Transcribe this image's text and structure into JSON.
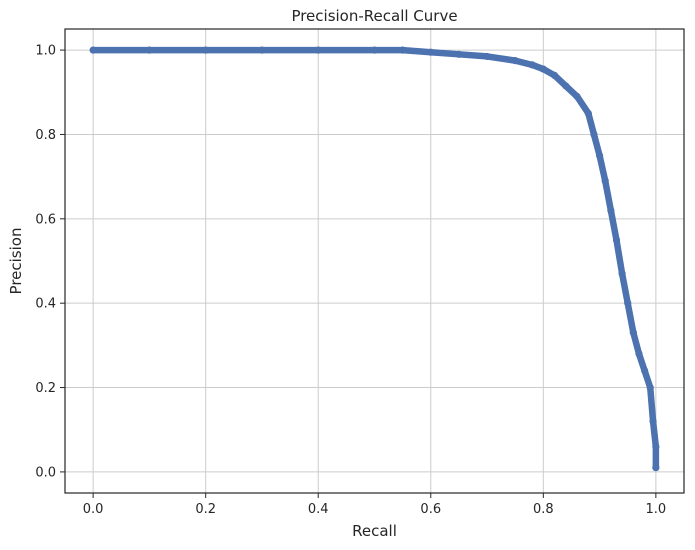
{
  "chart_data": {
    "type": "line",
    "title": "Precision-Recall Curve",
    "xlabel": "Recall",
    "ylabel": "Precision",
    "xlim": [
      -0.05,
      1.05
    ],
    "ylim": [
      -0.05,
      1.05
    ],
    "xticks": [
      0.0,
      0.2,
      0.4,
      0.6,
      0.8,
      1.0
    ],
    "xtick_labels": [
      "0.0",
      "0.2",
      "0.4",
      "0.6",
      "0.8",
      "1.0"
    ],
    "yticks": [
      0.0,
      0.2,
      0.4,
      0.6,
      0.8,
      1.0
    ],
    "ytick_labels": [
      "0.0",
      "0.2",
      "0.4",
      "0.6",
      "0.8",
      "1.0"
    ],
    "grid": true,
    "series": [
      {
        "color": "#4c72b0",
        "marker": "dot",
        "x": [
          0.0,
          0.1,
          0.2,
          0.3,
          0.4,
          0.5,
          0.55,
          0.6,
          0.65,
          0.7,
          0.75,
          0.78,
          0.8,
          0.82,
          0.84,
          0.86,
          0.88,
          0.89,
          0.9,
          0.91,
          0.92,
          0.93,
          0.94,
          0.95,
          0.96,
          0.97,
          0.98,
          0.99,
          0.995,
          1.0,
          1.0
        ],
        "y": [
          1.0,
          1.0,
          1.0,
          1.0,
          1.0,
          1.0,
          1.0,
          0.995,
          0.99,
          0.985,
          0.975,
          0.965,
          0.955,
          0.94,
          0.915,
          0.89,
          0.85,
          0.8,
          0.75,
          0.69,
          0.62,
          0.55,
          0.47,
          0.4,
          0.33,
          0.28,
          0.24,
          0.2,
          0.12,
          0.06,
          0.01
        ]
      }
    ]
  }
}
